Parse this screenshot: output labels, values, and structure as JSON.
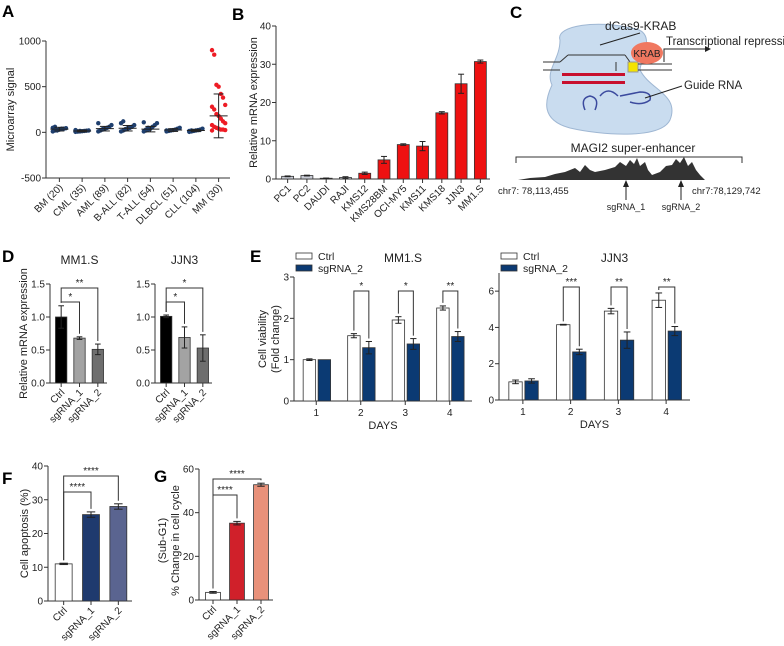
{
  "panels": {
    "A": "A",
    "B": "B",
    "C": "C",
    "D": "D",
    "E": "E",
    "F": "F",
    "G": "G"
  },
  "diagram_c": {
    "protein_label": "dCas9-KRAB",
    "krab_label": "KRAB",
    "repression_label": "Transcriptional repression",
    "guide_label": "Guide RNA",
    "enhancer_label": "MAGI2 super-enhancer",
    "coord_left": "chr7: 78,113,455",
    "coord_right": "chr7:78,129,742",
    "sg1_label": "sgRNA_1",
    "sg2_label": "sgRNA_2"
  },
  "chart_data": [
    {
      "id": "A",
      "type": "scatter",
      "ylabel": "Microarray signal",
      "ylim": [
        -500,
        1000
      ],
      "yticks": [
        -500,
        0,
        500,
        1000
      ],
      "categories": [
        "BM (20)",
        "CML (35)",
        "AML (89)",
        "B-ALL (82)",
        "T-ALL (54)",
        "DLBCL (51)",
        "CLL (104)",
        "MM (30)"
      ],
      "means": [
        35,
        15,
        40,
        45,
        35,
        25,
        20,
        180
      ],
      "sd": [
        20,
        10,
        25,
        30,
        30,
        15,
        12,
        240
      ],
      "points": [
        [
          10,
          20,
          25,
          30,
          35,
          40,
          45,
          50,
          60,
          20,
          30,
          40
        ],
        [
          5,
          8,
          10,
          12,
          15,
          18,
          20,
          25,
          10,
          15
        ],
        [
          10,
          20,
          30,
          40,
          50,
          60,
          80,
          100,
          25,
          35,
          45
        ],
        [
          10,
          20,
          30,
          40,
          50,
          60,
          80,
          100,
          120,
          35,
          45,
          55
        ],
        [
          10,
          20,
          30,
          40,
          60,
          80,
          100,
          110,
          30,
          50
        ],
        [
          10,
          15,
          20,
          25,
          30,
          40,
          50,
          20
        ],
        [
          5,
          10,
          15,
          20,
          25,
          30,
          40,
          15,
          20
        ],
        [
          900,
          850,
          520,
          500,
          420,
          380,
          300,
          280,
          250,
          200,
          180,
          150,
          120,
          100,
          80,
          60,
          50,
          40,
          30,
          30,
          25,
          20
        ]
      ],
      "colors": {
        "default": "#1f3f6e",
        "MM": "#ee1c25"
      }
    },
    {
      "id": "B",
      "type": "bar",
      "ylabel": "Relative mRNA expression",
      "ylim": [
        0,
        40
      ],
      "yticks": [
        0,
        10,
        20,
        30,
        40
      ],
      "categories": [
        "PC1",
        "PC2",
        "DAUDI",
        "RAJI",
        "KMS12",
        "KMS28BM",
        "OCI-MY5",
        "KMS11",
        "KMS18",
        "JJN3",
        "MM1.S"
      ],
      "values": [
        0.7,
        0.9,
        0.2,
        0.4,
        1.5,
        5.0,
        9.0,
        8.6,
        17.3,
        24.9,
        30.7
      ],
      "errors": [
        0.1,
        0.1,
        0.05,
        0.2,
        0.3,
        0.9,
        0.2,
        1.2,
        0.3,
        2.5,
        0.4
      ],
      "colors": [
        "#c9ccd6",
        "#c9ccd6",
        "#c9ccd6",
        "#c9ccd6",
        "#ee1111",
        "#ee1111",
        "#ee1111",
        "#ee1111",
        "#ee1111",
        "#ee1111",
        "#ee1111"
      ]
    },
    {
      "id": "D1",
      "type": "bar",
      "title": "MM1.S",
      "ylabel": "Relative mRNA expression",
      "ylim": [
        0,
        1.5
      ],
      "yticks": [
        0.0,
        0.5,
        1.0,
        1.5
      ],
      "tickdec": 1,
      "categories": [
        "Ctrl",
        "sgRNA_1",
        "sgRNA_2"
      ],
      "values": [
        1.0,
        0.68,
        0.51
      ],
      "errors": [
        0.17,
        0.02,
        0.08
      ],
      "colors": [
        "#000000",
        "#a3a3a3",
        "#6e6e6e"
      ],
      "significance": [
        {
          "from": 0,
          "to": 1,
          "label": "*"
        },
        {
          "from": 0,
          "to": 2,
          "label": "**"
        }
      ]
    },
    {
      "id": "D2",
      "type": "bar",
      "title": "JJN3",
      "ylabel": "",
      "ylim": [
        0,
        1.5
      ],
      "yticks": [
        0.0,
        0.5,
        1.0,
        1.5
      ],
      "tickdec": 1,
      "categories": [
        "Ctrl",
        "sgRNA_1",
        "sgRNA_2"
      ],
      "values": [
        1.01,
        0.69,
        0.53
      ],
      "errors": [
        0.02,
        0.16,
        0.2
      ],
      "colors": [
        "#000000",
        "#a3a3a3",
        "#6e6e6e"
      ],
      "significance": [
        {
          "from": 0,
          "to": 1,
          "label": "*"
        },
        {
          "from": 0,
          "to": 2,
          "label": "*"
        }
      ]
    },
    {
      "id": "E1",
      "type": "grouped-bar",
      "title": "MM1.S",
      "ylabel": "Cell viability",
      "ylabel2": "(Fold change)",
      "xlabel": "DAYS",
      "ylim": [
        0,
        3
      ],
      "yticks": [
        0,
        1,
        2,
        3
      ],
      "categories": [
        "1",
        "2",
        "3",
        "4"
      ],
      "series": [
        {
          "name": "Ctrl",
          "values": [
            1.0,
            1.58,
            1.96,
            2.25
          ],
          "errors": [
            0.02,
            0.05,
            0.08,
            0.05
          ],
          "color": "#ffffff"
        },
        {
          "name": "sgRNA_2",
          "values": [
            1.0,
            1.29,
            1.38,
            1.56
          ],
          "errors": [
            0.0,
            0.15,
            0.13,
            0.12
          ],
          "color": "#0b3a73"
        }
      ],
      "significance": [
        "",
        "*",
        "*",
        "**"
      ],
      "legend": "top-left"
    },
    {
      "id": "E2",
      "type": "grouped-bar",
      "title": "JJN3",
      "ylabel": "",
      "xlabel": "DAYS",
      "ylim": [
        0,
        7
      ],
      "yticks": [
        0,
        2,
        4,
        6
      ],
      "categories": [
        "1",
        "2",
        "3",
        "4"
      ],
      "series": [
        {
          "name": "Ctrl",
          "values": [
            1.0,
            4.15,
            4.9,
            5.5
          ],
          "errors": [
            0.1,
            0.02,
            0.15,
            0.4
          ],
          "color": "#ffffff"
        },
        {
          "name": "sgRNA_2",
          "values": [
            1.05,
            2.65,
            3.3,
            3.8
          ],
          "errors": [
            0.12,
            0.15,
            0.45,
            0.25
          ],
          "color": "#0b3a73"
        }
      ],
      "significance": [
        "",
        "***",
        "**",
        "**"
      ],
      "legend": "top-left"
    },
    {
      "id": "F",
      "type": "bar",
      "ylabel": "Cell apoptosis (%)",
      "ylim": [
        0,
        40
      ],
      "yticks": [
        0,
        10,
        20,
        30,
        40
      ],
      "categories": [
        "Ctrl",
        "sgRNA_1",
        "sgRNA_2"
      ],
      "values": [
        11.0,
        25.6,
        28.0
      ],
      "errors": [
        0.2,
        0.8,
        0.8
      ],
      "colors": [
        "#ffffff",
        "#1f3a6e",
        "#5a6490"
      ],
      "significance": [
        {
          "from": 0,
          "to": 1,
          "label": "****"
        },
        {
          "from": 0,
          "to": 2,
          "label": "****"
        }
      ]
    },
    {
      "id": "G",
      "type": "bar",
      "ylabel": "% Change in cell cycle",
      "ylabel2": "(Sub-G1)",
      "ylim": [
        0,
        60
      ],
      "yticks": [
        0,
        20,
        40,
        60
      ],
      "categories": [
        "Ctrl",
        "sgRNA_1",
        "sgRNA_2"
      ],
      "values": [
        3.5,
        35.2,
        52.8
      ],
      "errors": [
        0.4,
        0.8,
        0.7
      ],
      "colors": [
        "#ffffff",
        "#d0202a",
        "#e8917a"
      ],
      "significance": [
        {
          "from": 0,
          "to": 1,
          "label": "****"
        },
        {
          "from": 0,
          "to": 2,
          "label": "****"
        }
      ]
    }
  ]
}
